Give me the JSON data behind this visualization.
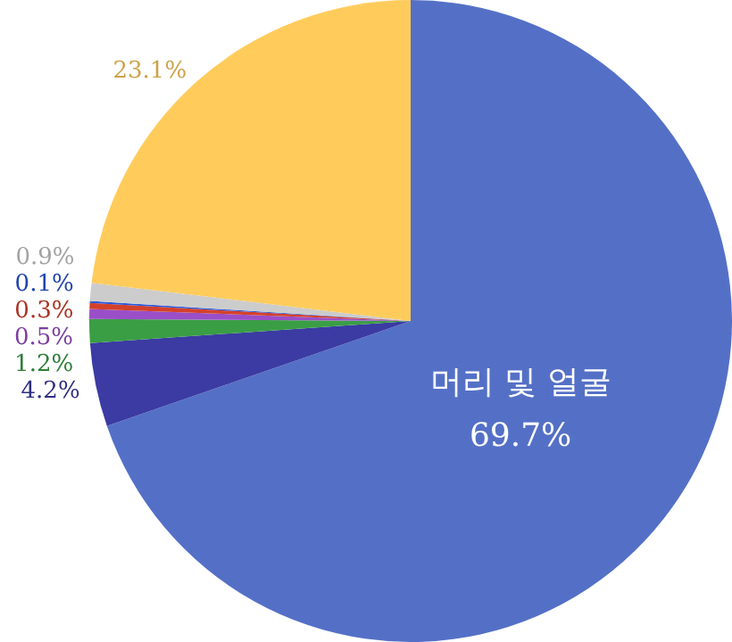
{
  "chart_data": {
    "type": "pie",
    "categories": [
      "머리 및 얼굴",
      null,
      null,
      null,
      null,
      null,
      null,
      null
    ],
    "values": [
      69.7,
      4.2,
      1.2,
      0.5,
      0.3,
      0.1,
      0.9,
      23.1
    ],
    "colors": [
      "#5470c6",
      "#3b3ba3",
      "#3a9e45",
      "#9a4fc8",
      "#d4412b",
      "#2b55d9",
      "#cccccc",
      "#ffcc5c"
    ],
    "value_labels": [
      "69.7%",
      "4.2%",
      "1.2%",
      "0.5%",
      "0.3%",
      "0.1%",
      "0.9%",
      "23.1%"
    ],
    "legend": false
  }
}
